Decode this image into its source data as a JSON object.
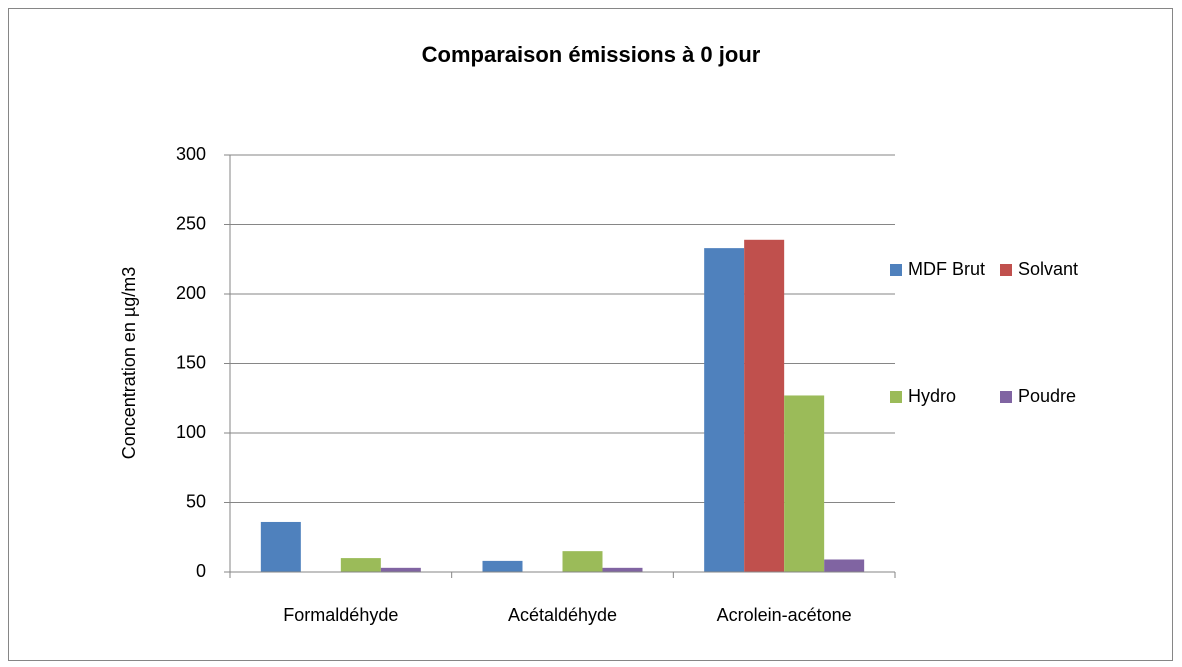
{
  "chart_data": {
    "type": "bar",
    "title": "Comparaison émissions à 0 jour",
    "y_label": "Concentration en µg/m3",
    "categories": [
      "Formaldéhyde",
      "Acétaldéhyde",
      "Acrolein-acétone"
    ],
    "series": [
      {
        "name": "MDF Brut",
        "color": "#4f81bd",
        "values": [
          36,
          8,
          233
        ]
      },
      {
        "name": "Solvant",
        "color": "#c0504d",
        "values": [
          0,
          0,
          239
        ]
      },
      {
        "name": "Hydro",
        "color": "#9bbb59",
        "values": [
          10,
          15,
          127
        ]
      },
      {
        "name": "Poudre",
        "color": "#8064a2",
        "values": [
          3,
          3,
          9
        ]
      }
    ],
    "ylim": [
      0,
      300
    ],
    "yticks": [
      0,
      50,
      100,
      150,
      200,
      250,
      300
    ],
    "grid": true,
    "legend": "right"
  }
}
